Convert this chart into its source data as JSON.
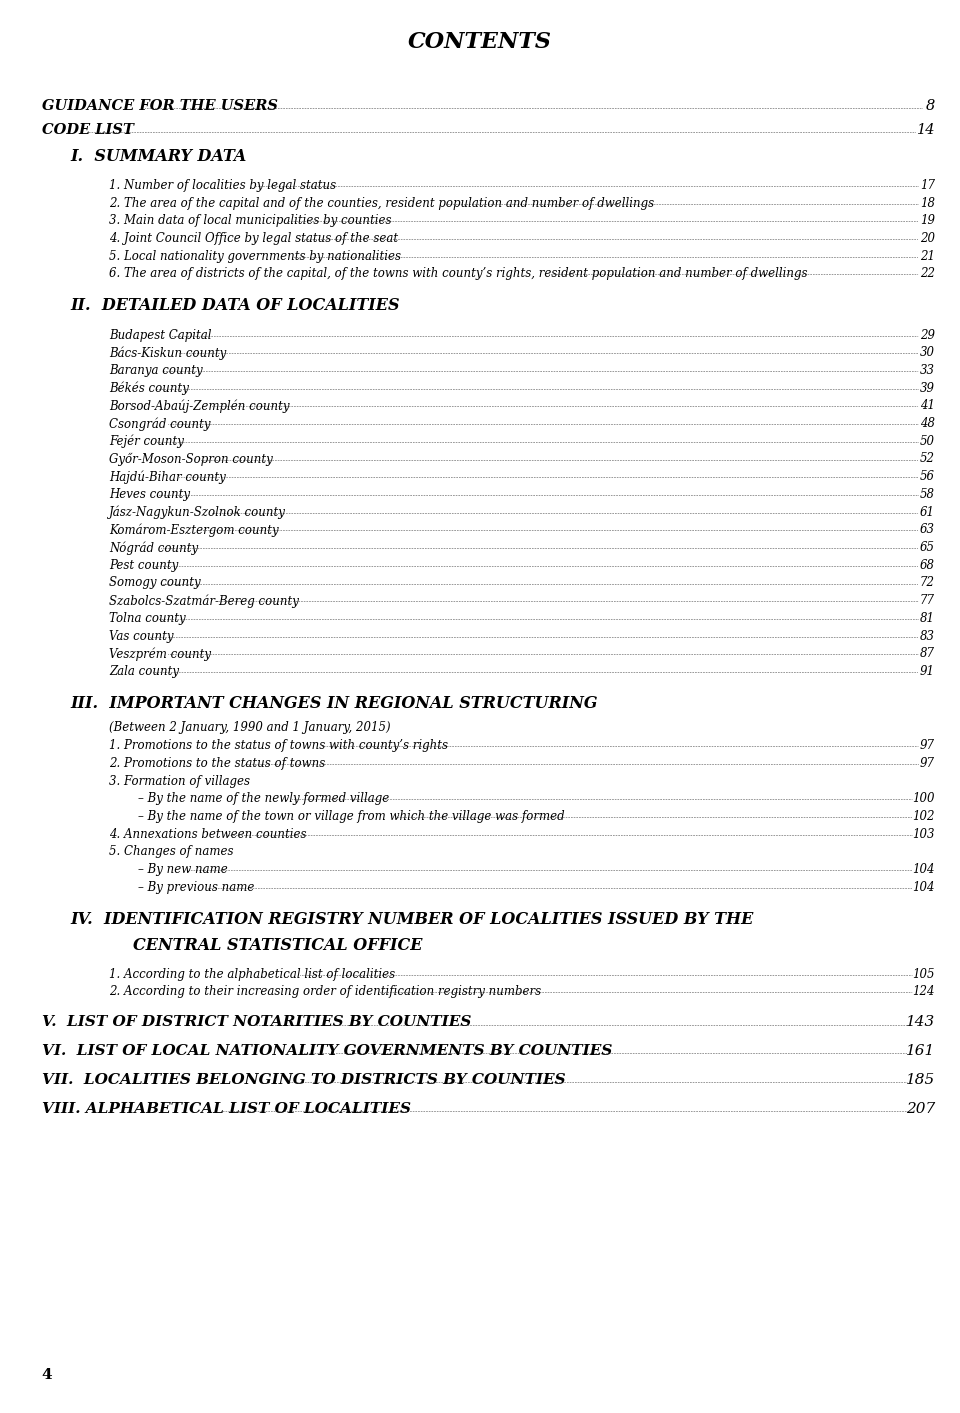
{
  "title": "CONTENTS",
  "bg_color": "#ffffff",
  "text_color": "#000000",
  "page_num_bottom": "4",
  "sections": [
    {
      "type": "gap",
      "size": 2.5
    },
    {
      "type": "top_level",
      "text": "GUIDANCE FOR THE USERS",
      "page": "8",
      "bold": true,
      "italic": true,
      "indent": 0,
      "dots": true,
      "size": 10.5
    },
    {
      "type": "gap",
      "size": 0.4
    },
    {
      "type": "top_level",
      "text": "CODE LIST",
      "page": "14",
      "bold": true,
      "italic": true,
      "indent": 0,
      "dots": true,
      "size": 10.5
    },
    {
      "type": "gap",
      "size": 0.4
    },
    {
      "type": "section_header",
      "text": "I.  SUMMARY DATA",
      "page": "",
      "bold": true,
      "italic": true,
      "indent": 0.03,
      "dots": false,
      "size": 11.5
    },
    {
      "type": "gap",
      "size": 0.6
    },
    {
      "type": "sub_item",
      "text": "1. Number of localities by legal status",
      "page": "17",
      "bold": false,
      "italic": true,
      "indent": 0.07,
      "dots": true,
      "size": 8.5
    },
    {
      "type": "gap",
      "size": 0.15
    },
    {
      "type": "sub_item",
      "text": "2. The area of the capital and of the counties, resident population and number of dwellings",
      "page": "18",
      "bold": false,
      "italic": true,
      "indent": 0.07,
      "dots": true,
      "size": 8.5
    },
    {
      "type": "gap",
      "size": 0.15
    },
    {
      "type": "sub_item",
      "text": "3. Main data of local municipalities by counties",
      "page": "19",
      "bold": false,
      "italic": true,
      "indent": 0.07,
      "dots": true,
      "size": 8.5
    },
    {
      "type": "gap",
      "size": 0.15
    },
    {
      "type": "sub_item",
      "text": "4. Joint Council Office by legal status of the seat",
      "page": "20",
      "bold": false,
      "italic": true,
      "indent": 0.07,
      "dots": true,
      "size": 8.5
    },
    {
      "type": "gap",
      "size": 0.15
    },
    {
      "type": "sub_item",
      "text": "5. Local nationality governments by nationalities",
      "page": "21",
      "bold": false,
      "italic": true,
      "indent": 0.07,
      "dots": true,
      "size": 8.5
    },
    {
      "type": "gap",
      "size": 0.15
    },
    {
      "type": "sub_item",
      "text": "6. The area of districts of the capital, of the towns with county’s rights, resident population and number of dwellings",
      "page": "22",
      "bold": false,
      "italic": true,
      "indent": 0.07,
      "dots": true,
      "size": 8.5
    },
    {
      "type": "gap",
      "size": 1.2
    },
    {
      "type": "section_header",
      "text": "II.  DETAILED DATA OF LOCALITIES",
      "page": "",
      "bold": true,
      "italic": true,
      "indent": 0.03,
      "dots": false,
      "size": 11.5
    },
    {
      "type": "gap",
      "size": 0.6
    },
    {
      "type": "sub_item",
      "text": "Budapest Capital",
      "page": "29",
      "bold": false,
      "italic": true,
      "indent": 0.07,
      "dots": true,
      "size": 8.5
    },
    {
      "type": "gap",
      "size": 0.15
    },
    {
      "type": "sub_item",
      "text": "Bács-Kiskun county",
      "page": "30",
      "bold": false,
      "italic": true,
      "indent": 0.07,
      "dots": true,
      "size": 8.5
    },
    {
      "type": "gap",
      "size": 0.15
    },
    {
      "type": "sub_item",
      "text": "Baranya county",
      "page": "33",
      "bold": false,
      "italic": true,
      "indent": 0.07,
      "dots": true,
      "size": 8.5
    },
    {
      "type": "gap",
      "size": 0.15
    },
    {
      "type": "sub_item",
      "text": "Békés county",
      "page": "39",
      "bold": false,
      "italic": true,
      "indent": 0.07,
      "dots": true,
      "size": 8.5
    },
    {
      "type": "gap",
      "size": 0.15
    },
    {
      "type": "sub_item",
      "text": "Borsod-Abaúj-Zemplén county",
      "page": "41",
      "bold": false,
      "italic": true,
      "indent": 0.07,
      "dots": true,
      "size": 8.5
    },
    {
      "type": "gap",
      "size": 0.15
    },
    {
      "type": "sub_item",
      "text": "Csongrád county",
      "page": "48",
      "bold": false,
      "italic": true,
      "indent": 0.07,
      "dots": true,
      "size": 8.5
    },
    {
      "type": "gap",
      "size": 0.15
    },
    {
      "type": "sub_item",
      "text": "Fejér county",
      "page": "50",
      "bold": false,
      "italic": true,
      "indent": 0.07,
      "dots": true,
      "size": 8.5
    },
    {
      "type": "gap",
      "size": 0.15
    },
    {
      "type": "sub_item",
      "text": "Győr-Moson-Sopron county",
      "page": "52",
      "bold": false,
      "italic": true,
      "indent": 0.07,
      "dots": true,
      "size": 8.5
    },
    {
      "type": "gap",
      "size": 0.15
    },
    {
      "type": "sub_item",
      "text": "Hajdú-Bihar county",
      "page": "56",
      "bold": false,
      "italic": true,
      "indent": 0.07,
      "dots": true,
      "size": 8.5
    },
    {
      "type": "gap",
      "size": 0.15
    },
    {
      "type": "sub_item",
      "text": "Heves county",
      "page": "58",
      "bold": false,
      "italic": true,
      "indent": 0.07,
      "dots": true,
      "size": 8.5
    },
    {
      "type": "gap",
      "size": 0.15
    },
    {
      "type": "sub_item",
      "text": "Jász-Nagykun-Szolnok county",
      "page": "61",
      "bold": false,
      "italic": true,
      "indent": 0.07,
      "dots": true,
      "size": 8.5
    },
    {
      "type": "gap",
      "size": 0.15
    },
    {
      "type": "sub_item",
      "text": "Komárom-Esztergom county",
      "page": "63",
      "bold": false,
      "italic": true,
      "indent": 0.07,
      "dots": true,
      "size": 8.5
    },
    {
      "type": "gap",
      "size": 0.15
    },
    {
      "type": "sub_item",
      "text": "Nógrád county",
      "page": "65",
      "bold": false,
      "italic": true,
      "indent": 0.07,
      "dots": true,
      "size": 8.5
    },
    {
      "type": "gap",
      "size": 0.15
    },
    {
      "type": "sub_item",
      "text": "Pest county",
      "page": "68",
      "bold": false,
      "italic": true,
      "indent": 0.07,
      "dots": true,
      "size": 8.5
    },
    {
      "type": "gap",
      "size": 0.15
    },
    {
      "type": "sub_item",
      "text": "Somogy county",
      "page": "72",
      "bold": false,
      "italic": true,
      "indent": 0.07,
      "dots": true,
      "size": 8.5
    },
    {
      "type": "gap",
      "size": 0.15
    },
    {
      "type": "sub_item",
      "text": "Szabolcs-Szatmár-Bereg county",
      "page": "77",
      "bold": false,
      "italic": true,
      "indent": 0.07,
      "dots": true,
      "size": 8.5
    },
    {
      "type": "gap",
      "size": 0.15
    },
    {
      "type": "sub_item",
      "text": "Tolna county",
      "page": "81",
      "bold": false,
      "italic": true,
      "indent": 0.07,
      "dots": true,
      "size": 8.5
    },
    {
      "type": "gap",
      "size": 0.15
    },
    {
      "type": "sub_item",
      "text": "Vas county",
      "page": "83",
      "bold": false,
      "italic": true,
      "indent": 0.07,
      "dots": true,
      "size": 8.5
    },
    {
      "type": "gap",
      "size": 0.15
    },
    {
      "type": "sub_item",
      "text": "Veszprém county",
      "page": "87",
      "bold": false,
      "italic": true,
      "indent": 0.07,
      "dots": true,
      "size": 8.5
    },
    {
      "type": "gap",
      "size": 0.15
    },
    {
      "type": "sub_item",
      "text": "Zala county",
      "page": "91",
      "bold": false,
      "italic": true,
      "indent": 0.07,
      "dots": true,
      "size": 8.5
    },
    {
      "type": "gap",
      "size": 1.2
    },
    {
      "type": "section_header",
      "text": "III.  IMPORTANT CHANGES IN REGIONAL STRUCTURING",
      "page": "",
      "bold": true,
      "italic": true,
      "indent": 0.03,
      "dots": false,
      "size": 11.5
    },
    {
      "type": "gap",
      "size": 0.2
    },
    {
      "type": "plain",
      "text": "(Between 2 January, 1990 and 1 January, 2015)",
      "page": "",
      "bold": false,
      "italic": true,
      "indent": 0.07,
      "dots": false,
      "size": 8.5
    },
    {
      "type": "gap",
      "size": 0.15
    },
    {
      "type": "sub_item",
      "text": "1. Promotions to the status of towns with county’s rights",
      "page": "97",
      "bold": false,
      "italic": true,
      "indent": 0.07,
      "dots": true,
      "size": 8.5
    },
    {
      "type": "gap",
      "size": 0.15
    },
    {
      "type": "sub_item",
      "text": "2. Promotions to the status of towns",
      "page": "97",
      "bold": false,
      "italic": true,
      "indent": 0.07,
      "dots": true,
      "size": 8.5
    },
    {
      "type": "gap",
      "size": 0.15
    },
    {
      "type": "plain",
      "text": "3. Formation of villages",
      "page": "",
      "bold": false,
      "italic": true,
      "indent": 0.07,
      "dots": false,
      "size": 8.5
    },
    {
      "type": "gap",
      "size": 0.15
    },
    {
      "type": "sub_item",
      "text": "– By the name of the newly formed village",
      "page": "100",
      "bold": false,
      "italic": true,
      "indent": 0.1,
      "dots": true,
      "size": 8.5
    },
    {
      "type": "gap",
      "size": 0.15
    },
    {
      "type": "sub_item",
      "text": "– By the name of the town or village from which the village was formed",
      "page": "102",
      "bold": false,
      "italic": true,
      "indent": 0.1,
      "dots": true,
      "size": 8.5
    },
    {
      "type": "gap",
      "size": 0.15
    },
    {
      "type": "sub_item",
      "text": "4. Annexations between counties",
      "page": "103",
      "bold": false,
      "italic": true,
      "indent": 0.07,
      "dots": true,
      "size": 8.5
    },
    {
      "type": "gap",
      "size": 0.15
    },
    {
      "type": "plain",
      "text": "5. Changes of names",
      "page": "",
      "bold": false,
      "italic": true,
      "indent": 0.07,
      "dots": false,
      "size": 8.5
    },
    {
      "type": "gap",
      "size": 0.15
    },
    {
      "type": "sub_item",
      "text": "– By new name",
      "page": "104",
      "bold": false,
      "italic": true,
      "indent": 0.1,
      "dots": true,
      "size": 8.5
    },
    {
      "type": "gap",
      "size": 0.15
    },
    {
      "type": "sub_item",
      "text": "– By previous name",
      "page": "104",
      "bold": false,
      "italic": true,
      "indent": 0.1,
      "dots": true,
      "size": 8.5
    },
    {
      "type": "gap",
      "size": 1.2
    },
    {
      "type": "section_header",
      "text": "IV.  IDENTIFICATION REGISTRY NUMBER OF LOCALITIES ISSUED BY THE",
      "page": "",
      "bold": true,
      "italic": true,
      "indent": 0.03,
      "dots": false,
      "size": 11.5
    },
    {
      "type": "gap",
      "size": 0.15
    },
    {
      "type": "section_header",
      "text": "CENTRAL STATISTICAL OFFICE",
      "page": "",
      "bold": true,
      "italic": true,
      "indent": 0.095,
      "dots": false,
      "size": 11.5
    },
    {
      "type": "gap",
      "size": 0.6
    },
    {
      "type": "sub_item",
      "text": "1. According to the alphabetical list of localities",
      "page": "105",
      "bold": false,
      "italic": true,
      "indent": 0.07,
      "dots": true,
      "size": 8.5
    },
    {
      "type": "gap",
      "size": 0.15
    },
    {
      "type": "sub_item",
      "text": "2. According to their increasing order of identification registry numbers",
      "page": "124",
      "bold": false,
      "italic": true,
      "indent": 0.07,
      "dots": true,
      "size": 8.5
    },
    {
      "type": "gap",
      "size": 1.2
    },
    {
      "type": "top_bold",
      "text": "V.  LIST OF DISTRICT NOTARITIES BY COUNTIES",
      "page": "143",
      "bold": true,
      "italic": true,
      "indent": 0.0,
      "dots": true,
      "size": 11.0
    },
    {
      "type": "gap",
      "size": 0.5
    },
    {
      "type": "top_bold",
      "text": "VI.  LIST OF LOCAL NATIONALITY GOVERNMENTS BY COUNTIES",
      "page": "161",
      "bold": true,
      "italic": true,
      "indent": 0.0,
      "dots": true,
      "size": 11.0
    },
    {
      "type": "gap",
      "size": 0.5
    },
    {
      "type": "top_bold",
      "text": "VII.  LOCALITIES BELONGING TO DISTRICTS BY COUNTIES",
      "page": "185",
      "bold": true,
      "italic": true,
      "indent": 0.0,
      "dots": true,
      "size": 11.0
    },
    {
      "type": "gap",
      "size": 0.5
    },
    {
      "type": "top_bold",
      "text": "VIII. ALPHABETICAL LIST OF LOCALITIES",
      "page": "207",
      "bold": true,
      "italic": true,
      "indent": 0.0,
      "dots": true,
      "size": 11.0
    }
  ]
}
